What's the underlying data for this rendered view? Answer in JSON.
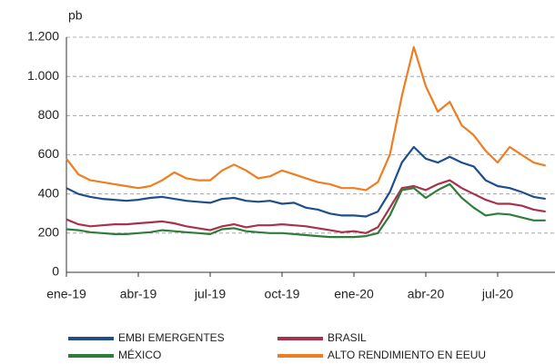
{
  "chart_data": {
    "type": "line",
    "y_unit": "pb",
    "categories": [
      "ene-19",
      null,
      null,
      null,
      null,
      null,
      "abr-19",
      null,
      null,
      null,
      null,
      null,
      "jul-19",
      null,
      null,
      null,
      null,
      null,
      "oct-19",
      null,
      null,
      null,
      null,
      null,
      "ene-20",
      null,
      null,
      null,
      null,
      null,
      "abr-20",
      null,
      null,
      null,
      null,
      null,
      "jul-20",
      null,
      null,
      null,
      null
    ],
    "series": [
      {
        "name": "EMBI EMERGENTES",
        "color": "#1f4e8c",
        "values": [
          430,
          400,
          385,
          375,
          370,
          365,
          370,
          380,
          385,
          375,
          365,
          360,
          355,
          375,
          380,
          365,
          360,
          365,
          350,
          355,
          330,
          320,
          300,
          290,
          290,
          285,
          310,
          410,
          560,
          640,
          580,
          560,
          590,
          560,
          540,
          470,
          440,
          430,
          410,
          385,
          375
        ]
      },
      {
        "name": "BRASIL",
        "color": "#a8324a",
        "values": [
          270,
          245,
          235,
          240,
          245,
          245,
          250,
          255,
          260,
          250,
          235,
          225,
          215,
          235,
          245,
          230,
          240,
          240,
          245,
          240,
          235,
          225,
          215,
          205,
          210,
          200,
          230,
          330,
          430,
          440,
          420,
          450,
          470,
          430,
          400,
          370,
          350,
          350,
          340,
          320,
          310
        ]
      },
      {
        "name": "MÉXICO",
        "color": "#2e7d3a",
        "values": [
          220,
          215,
          205,
          200,
          195,
          195,
          200,
          205,
          215,
          210,
          205,
          200,
          195,
          220,
          225,
          210,
          205,
          200,
          200,
          195,
          190,
          185,
          180,
          180,
          180,
          185,
          200,
          290,
          420,
          430,
          380,
          420,
          450,
          380,
          330,
          290,
          300,
          295,
          280,
          265,
          265
        ]
      },
      {
        "name": "ALTO RENDIMIENTO EN EEUU",
        "color": "#ef7d22",
        "values": [
          580,
          500,
          470,
          460,
          450,
          440,
          430,
          440,
          470,
          510,
          480,
          470,
          470,
          520,
          550,
          520,
          480,
          490,
          520,
          500,
          480,
          460,
          450,
          430,
          430,
          420,
          460,
          600,
          900,
          1150,
          950,
          820,
          870,
          750,
          700,
          620,
          560,
          640,
          600,
          560,
          545
        ]
      }
    ],
    "ylim": [
      0,
      1200
    ],
    "yticks": [
      0,
      200,
      400,
      600,
      800,
      {
        "value": 1000,
        "label": "1.000"
      },
      {
        "value": 1200,
        "label": "1.200"
      }
    ],
    "grid": true
  }
}
